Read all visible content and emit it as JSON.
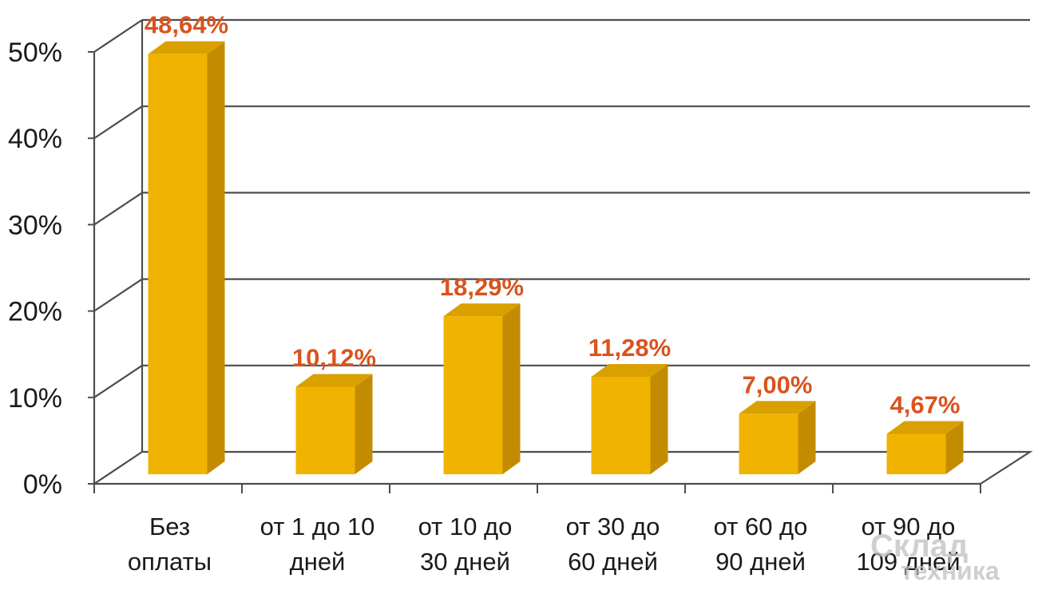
{
  "chart_data": {
    "type": "bar",
    "style": "3d-column",
    "categories": [
      [
        "Без",
        "оплаты"
      ],
      [
        "от 1 до 10",
        "дней"
      ],
      [
        "от 10 до",
        "30 дней"
      ],
      [
        "от 30 до",
        "60 дней"
      ],
      [
        "от 60 до",
        "90 дней"
      ],
      [
        "от 90 до",
        "109 дней"
      ]
    ],
    "values": [
      48.64,
      10.12,
      18.29,
      11.28,
      7.0,
      4.67
    ],
    "data_labels": [
      "48,64%",
      "10,12%",
      "18,29%",
      "11,28%",
      "7,00%",
      "4,67%"
    ],
    "y_ticks": [
      0,
      10,
      20,
      30,
      40,
      50
    ],
    "y_tick_labels": [
      "0%",
      "10%",
      "20%",
      "30%",
      "40%",
      "50%"
    ],
    "ylim": [
      0,
      50
    ],
    "grid": true,
    "title": "",
    "xlabel": "",
    "ylabel": "",
    "colors": {
      "bar_front": "#f0b400",
      "bar_side": "#c38c00",
      "bar_top": "#d9a000",
      "data_label": "#d9531e",
      "grid": "#4d4d4d",
      "axis_text": "#1a1a1a"
    }
  },
  "watermark": {
    "line1": "Склад",
    "line2": "техника"
  }
}
